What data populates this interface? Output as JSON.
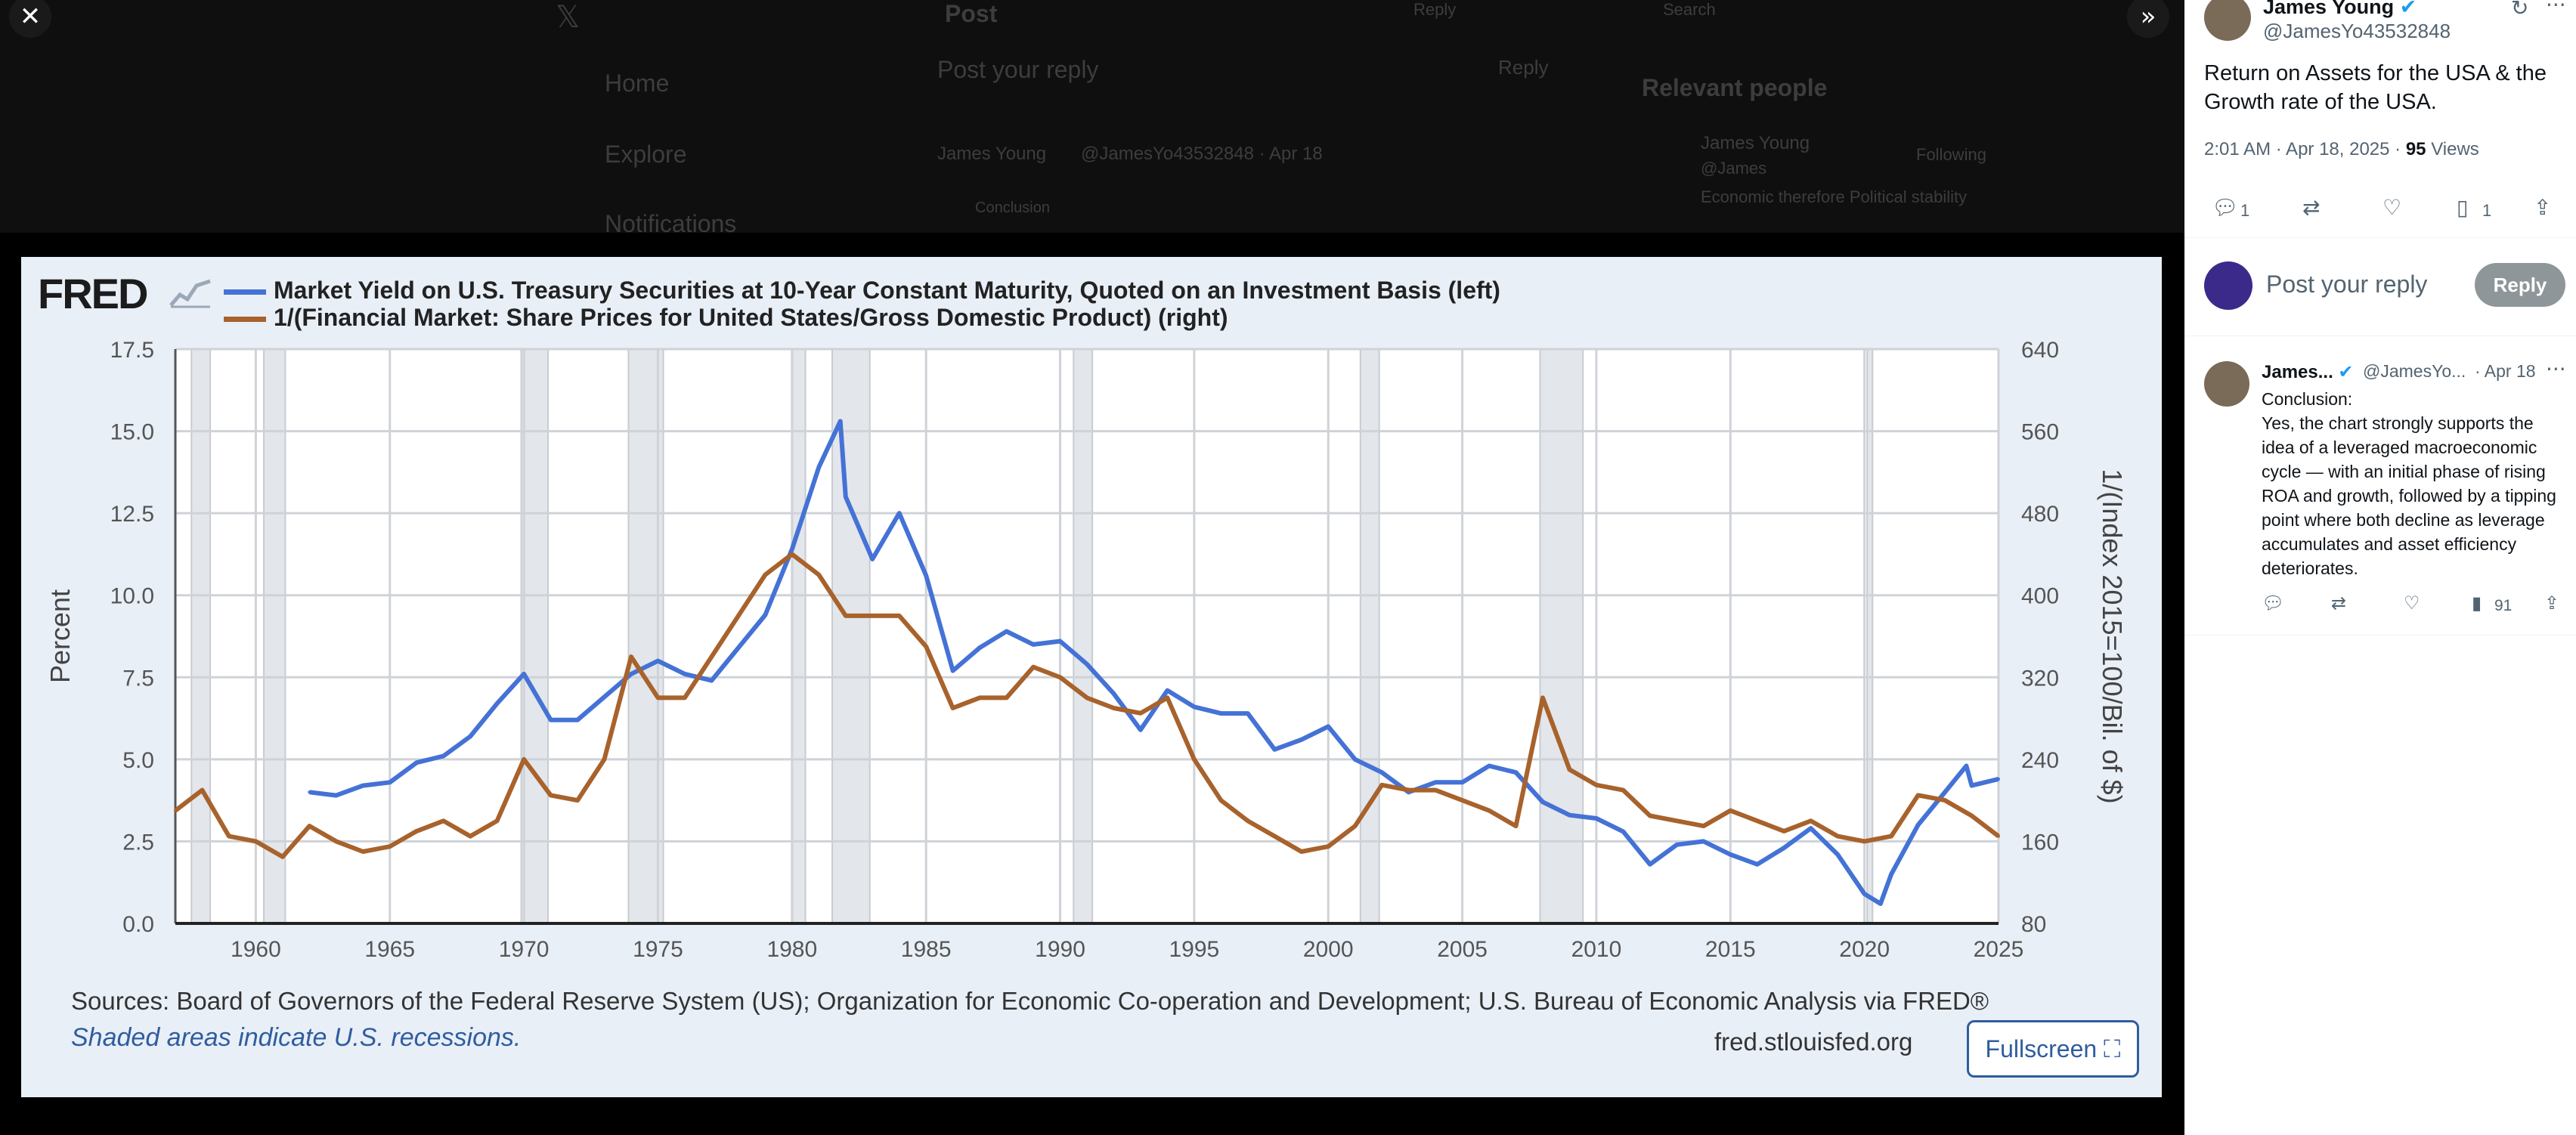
{
  "background": {
    "nav": [
      "Home",
      "Explore",
      "Notifications"
    ],
    "post_header": "Post",
    "reply_label": "Reply",
    "reply_placeholder": "Post your reply",
    "search_placeholder": "Search",
    "relevant_people": "Relevant people",
    "rp_name": "James Young",
    "rp_handle": "@James",
    "rp_follow": "Following",
    "rp_bio": "Economic therefore Political stability",
    "post_author": "James Young",
    "post_handle": "@JamesYo43532848 · Apr 18",
    "post_snippet": "Conclusion"
  },
  "overlay": {
    "close_icon": "close-icon",
    "expand_icon": "double-chevron-right-icon"
  },
  "chart_card": {
    "logo": "FRED",
    "legend": [
      {
        "label": "Market Yield on U.S. Treasury Securities at 10-Year Constant Maturity, Quoted on an Investment Basis (left)",
        "color": "#4472d6"
      },
      {
        "label": "1/(Financial Market: Share Prices for United States/Gross Domestic Product) (right)",
        "color": "#a8622c"
      }
    ],
    "source": "Sources: Board of Governors of the Federal Reserve System (US); Organization for Economic Co-operation and Development; U.S. Bureau of Economic Analysis via FRED®",
    "shade_note": "Shaded areas indicate U.S. recessions.",
    "url": "fred.stlouisfed.org",
    "fullscreen": "Fullscreen"
  },
  "chart_data": {
    "type": "line",
    "ylabel": "Percent",
    "y2label": "1/(Index 2015=100/Bil. of $)",
    "xlim": [
      1957,
      2025
    ],
    "ylim": [
      0,
      17.5
    ],
    "y2lim": [
      80,
      640
    ],
    "x_ticks": [
      1960,
      1965,
      1970,
      1975,
      1980,
      1985,
      1990,
      1995,
      2000,
      2005,
      2010,
      2015,
      2020,
      2025
    ],
    "y_ticks": [
      "0.0",
      "2.5",
      "5.0",
      "7.5",
      "10.0",
      "12.5",
      "15.0",
      "17.5"
    ],
    "y2_ticks": [
      "80",
      "160",
      "240",
      "320",
      "400",
      "480",
      "560",
      "640"
    ],
    "grid": true,
    "recessions": [
      [
        1957.6,
        1958.3
      ],
      [
        1960.3,
        1961.1
      ],
      [
        1969.9,
        1970.9
      ],
      [
        1973.9,
        1975.2
      ],
      [
        1980.0,
        1980.5
      ],
      [
        1981.5,
        1982.9
      ],
      [
        1990.5,
        1991.2
      ],
      [
        2001.2,
        2001.9
      ],
      [
        2007.9,
        2009.5
      ],
      [
        2020.1,
        2020.3
      ]
    ],
    "series": [
      {
        "name": "Market Yield on U.S. Treasury Securities at 10-Year Constant Maturity, Quoted on an Investment Basis (left)",
        "axis": "left",
        "color": "#4472d6",
        "x": [
          1962,
          1963,
          1964,
          1965,
          1966,
          1967,
          1968,
          1969,
          1970,
          1971,
          1972,
          1973,
          1974,
          1975,
          1976,
          1977,
          1978,
          1979,
          1980,
          1981,
          1981.8,
          1982,
          1983,
          1984,
          1985,
          1986,
          1987,
          1988,
          1989,
          1990,
          1991,
          1992,
          1993,
          1994,
          1995,
          1996,
          1997,
          1998,
          1999,
          2000,
          2001,
          2002,
          2003,
          2004,
          2005,
          2006,
          2007,
          2008,
          2009,
          2010,
          2011,
          2012,
          2013,
          2014,
          2015,
          2016,
          2017,
          2018,
          2019,
          2020,
          2020.6,
          2021,
          2022,
          2023,
          2023.8,
          2024,
          2025
        ],
        "values": [
          4.0,
          3.9,
          4.2,
          4.3,
          4.9,
          5.1,
          5.7,
          6.7,
          7.6,
          6.2,
          6.2,
          6.9,
          7.6,
          8.0,
          7.6,
          7.4,
          8.4,
          9.4,
          11.4,
          13.9,
          15.3,
          13.0,
          11.1,
          12.5,
          10.6,
          7.7,
          8.4,
          8.9,
          8.5,
          8.6,
          7.9,
          7.0,
          5.9,
          7.1,
          6.6,
          6.4,
          6.4,
          5.3,
          5.6,
          6.0,
          5.0,
          4.6,
          4.0,
          4.3,
          4.3,
          4.8,
          4.6,
          3.7,
          3.3,
          3.2,
          2.8,
          1.8,
          2.4,
          2.5,
          2.1,
          1.8,
          2.3,
          2.9,
          2.1,
          0.9,
          0.6,
          1.5,
          3.0,
          4.0,
          4.8,
          4.2,
          4.4
        ]
      },
      {
        "name": "1/(Financial Market: Share Prices for United States/Gross Domestic Product) (right)",
        "axis": "right",
        "color": "#a8622c",
        "x": [
          1957,
          1958,
          1959,
          1960,
          1961,
          1962,
          1963,
          1964,
          1965,
          1966,
          1967,
          1968,
          1969,
          1970,
          1971,
          1972,
          1973,
          1974,
          1975,
          1976,
          1977,
          1978,
          1979,
          1980,
          1981,
          1982,
          1983,
          1984,
          1985,
          1986,
          1987,
          1988,
          1989,
          1990,
          1991,
          1992,
          1993,
          1994,
          1995,
          1996,
          1997,
          1998,
          1999,
          2000,
          2001,
          2002,
          2003,
          2004,
          2005,
          2006,
          2007,
          2008,
          2009,
          2010,
          2011,
          2012,
          2013,
          2014,
          2015,
          2016,
          2017,
          2018,
          2019,
          2020,
          2021,
          2022,
          2023,
          2024,
          2025
        ],
        "values": [
          190,
          210,
          165,
          160,
          145,
          175,
          160,
          150,
          155,
          170,
          180,
          165,
          180,
          240,
          205,
          200,
          240,
          340,
          300,
          300,
          340,
          380,
          420,
          440,
          420,
          380,
          380,
          380,
          350,
          290,
          300,
          300,
          330,
          320,
          300,
          290,
          285,
          300,
          240,
          200,
          180,
          165,
          150,
          155,
          175,
          215,
          210,
          210,
          200,
          190,
          175,
          300,
          230,
          215,
          210,
          185,
          180,
          175,
          190,
          180,
          170,
          180,
          165,
          160,
          165,
          205,
          200,
          185,
          165
        ]
      }
    ]
  },
  "sidebar": {
    "author": "James Young",
    "handle": "@JamesYo43532848",
    "tweet_text": "Return on Assets for the USA & the Growth rate of the USA.",
    "timestamp": "2:01 AM · Apr 18, 2025 · ",
    "views_count": "95",
    "views_label": " Views",
    "stats": {
      "replies": "1",
      "bookmarks": "1"
    },
    "reply_placeholder": "Post your reply",
    "reply_button": "Reply",
    "reply": {
      "author": "James...",
      "handle": "@JamesYo...",
      "date": "· Apr 18",
      "more": "···",
      "text_1": "Conclusion:",
      "text_2": "Yes, the chart strongly supports the idea of a leveraged macroeconomic cycle — with an initial phase of rising ROA and growth, followed by a tipping point where both decline as leverage accumulates and asset efficiency deteriorates.",
      "views": "91"
    }
  }
}
